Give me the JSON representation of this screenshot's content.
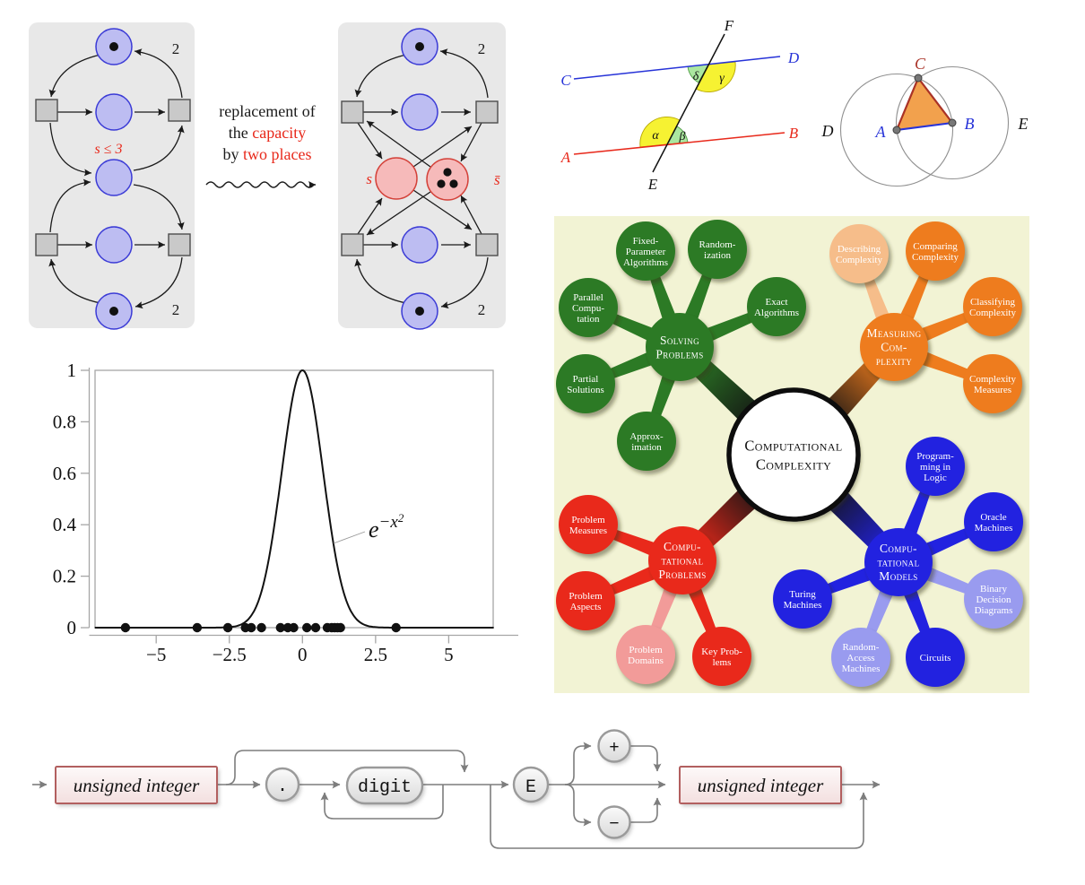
{
  "petri": {
    "caption_lines": [
      [
        {
          "text": "replacement of",
          "red": false
        }
      ],
      [
        {
          "text": "the ",
          "red": false
        },
        {
          "text": "capacity",
          "red": true
        }
      ],
      [
        {
          "text": "by ",
          "red": false
        },
        {
          "text": "two places",
          "red": true
        }
      ]
    ],
    "capacity_label": "s ≤ 3",
    "s_label": "s",
    "s_bar_label": "s̄",
    "weights": {
      "top_left": "2",
      "bottom_left": "2",
      "top_right": "2",
      "bottom_right": "2"
    }
  },
  "angles": {
    "a": "A",
    "b": "B",
    "c": "C",
    "d": "D",
    "e": "E",
    "f": "F",
    "alpha": "α",
    "beta": "β",
    "gamma": "γ",
    "delta": "δ"
  },
  "euclid": {
    "a": "A",
    "b": "B",
    "c": "C",
    "d": "D",
    "e": "E"
  },
  "mindmap": {
    "center": "Computational\nComplexity",
    "branches": [
      {
        "title": "Solving\nProblems",
        "color": "#2c7a25",
        "light_color": "#8fbf7f",
        "children": [
          {
            "label": "Fixed-\nParameter\nAlgorithms"
          },
          {
            "label": "Random-\nization"
          },
          {
            "label": "Exact\nAlgorithms"
          },
          {
            "label": "Parallel\nCompu-\ntation"
          },
          {
            "label": "Partial\nSolutions"
          },
          {
            "label": "Approx-\nimation"
          }
        ]
      },
      {
        "title": "Measuring\nCom-\nplexity",
        "color": "#ee7c1e",
        "light_color": "#f6bd8a",
        "children": [
          {
            "label": "Describing\nComplexity",
            "light": true
          },
          {
            "label": "Comparing\nComplexity"
          },
          {
            "label": "Classifying\nComplexity"
          },
          {
            "label": "Complexity\nMeasures"
          }
        ]
      },
      {
        "title": "Compu-\ntational\nProblems",
        "color": "#e9291b",
        "light_color": "#f29b99",
        "children": [
          {
            "label": "Problem\nMeasures"
          },
          {
            "label": "Problem\nAspects"
          },
          {
            "label": "Problem\nDomains",
            "light": true
          },
          {
            "label": "Key Prob-\nlems"
          }
        ]
      },
      {
        "title": "Compu-\ntational\nModels",
        "color": "#2222e0",
        "light_color": "#999bef",
        "children": [
          {
            "label": "Program-\nming in\nLogic"
          },
          {
            "label": "Oracle\nMachines"
          },
          {
            "label": "Binary\nDecision\nDiagrams",
            "light": true
          },
          {
            "label": "Turing\nMachines"
          },
          {
            "label": "Random-\nAccess\nMachines",
            "light": true
          },
          {
            "label": "Circuits"
          }
        ]
      }
    ]
  },
  "chart_data": {
    "type": "line+scatter",
    "title": "",
    "xlabel": "",
    "ylabel": "",
    "grid": false,
    "curve": {
      "name": "e^(-x^2)",
      "formula": "exp(-x*x)",
      "label_base": "e",
      "label_sup": "−x",
      "label_exp": "2"
    },
    "x_ticks": [
      "−5",
      "−2.5",
      "0",
      "2.5",
      "5"
    ],
    "x_tick_values": [
      -5,
      -2.5,
      0,
      2.5,
      5
    ],
    "y_ticks": [
      "0",
      "0.2",
      "0.4",
      "0.6",
      "0.8",
      "1"
    ],
    "y_tick_values": [
      0,
      0.2,
      0.4,
      0.6,
      0.8,
      1
    ],
    "xlim": [
      -7.1,
      6.55
    ],
    "ylim": [
      0,
      1
    ],
    "scatter_x": [
      -6.05,
      -3.6,
      -2.55,
      -1.95,
      -1.75,
      -1.4,
      -0.75,
      -0.5,
      -0.3,
      0.15,
      0.45,
      0.85,
      1.0,
      1.1,
      1.2,
      1.3,
      3.2
    ],
    "scatter_y": [
      0,
      0,
      0,
      0,
      0,
      0,
      0,
      0,
      0,
      0,
      0,
      0,
      0,
      0,
      0,
      0,
      0
    ]
  },
  "railroad": {
    "uint1": "unsigned integer",
    "dot": ".",
    "digit": "digit",
    "exp": "E",
    "plus": "+",
    "minus": "−",
    "uint2": "unsigned integer"
  }
}
